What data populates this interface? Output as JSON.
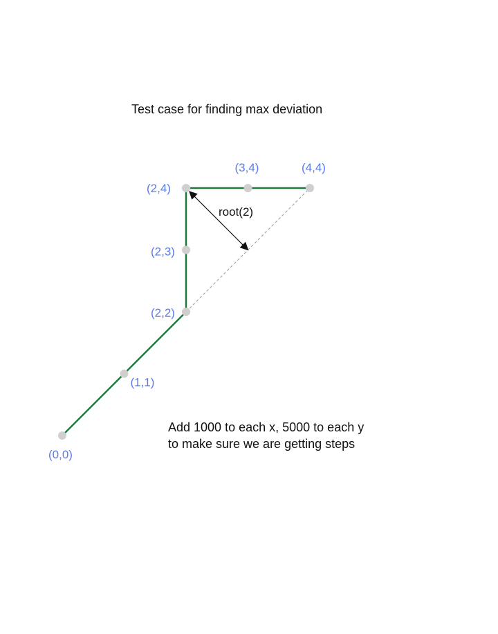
{
  "title": "Test case for finding max deviation",
  "colors": {
    "path": "#1f7a3a",
    "label": "#5b7be8",
    "point": "#cfcfcf",
    "dashed": "#9a9a9a",
    "arrow": "#111111"
  },
  "points": [
    {
      "label": "(0,0)",
      "x": 0,
      "y": 0
    },
    {
      "label": "(1,1)",
      "x": 1,
      "y": 1
    },
    {
      "label": "(2,2)",
      "x": 2,
      "y": 2
    },
    {
      "label": "(2,3)",
      "x": 2,
      "y": 3
    },
    {
      "label": "(2,4)",
      "x": 2,
      "y": 4
    },
    {
      "label": "(3,4)",
      "x": 3,
      "y": 4
    },
    {
      "label": "(4,4)",
      "x": 4,
      "y": 4
    }
  ],
  "deviation": {
    "label": "root(2)",
    "from": [
      2,
      4
    ],
    "to": [
      3,
      3
    ]
  },
  "note": {
    "line1": "Add 1000 to each x, 5000 to each y",
    "line2": "to make sure we are getting steps"
  }
}
